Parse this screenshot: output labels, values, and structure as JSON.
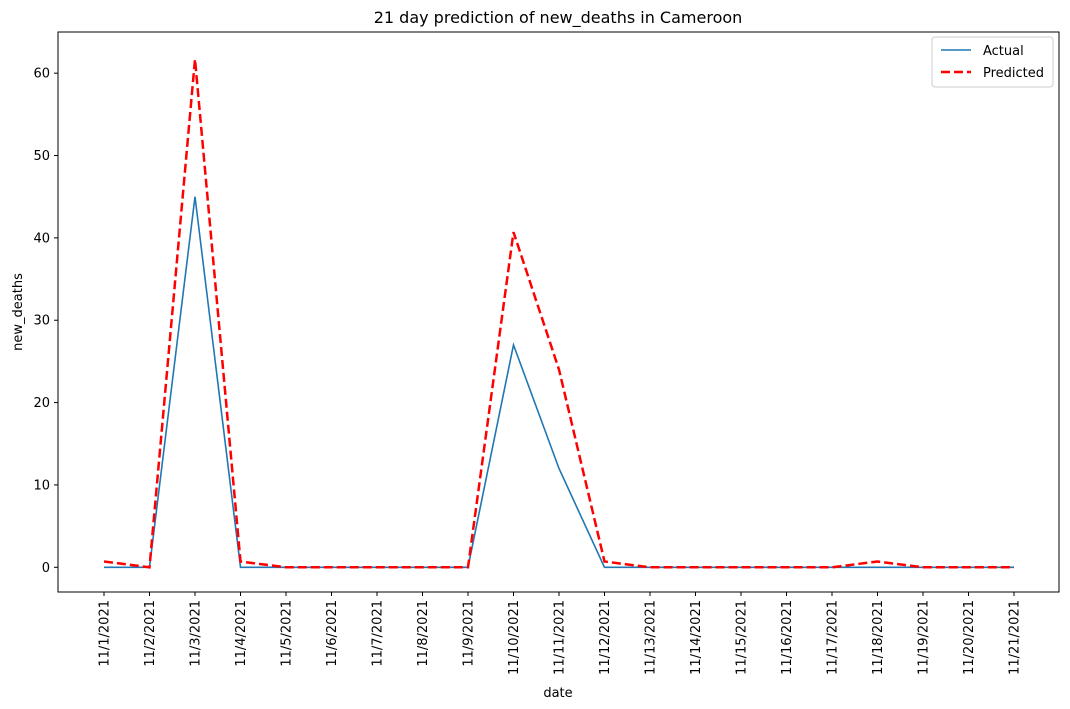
{
  "chart_data": {
    "type": "line",
    "title": "21 day prediction of new_deaths in Cameroon",
    "xlabel": "date",
    "ylabel": "new_deaths",
    "x": [
      "11/1/2021",
      "11/2/2021",
      "11/3/2021",
      "11/4/2021",
      "11/5/2021",
      "11/6/2021",
      "11/7/2021",
      "11/8/2021",
      "11/9/2021",
      "11/10/2021",
      "11/11/2021",
      "11/12/2021",
      "11/13/2021",
      "11/14/2021",
      "11/15/2021",
      "11/16/2021",
      "11/17/2021",
      "11/18/2021",
      "11/19/2021",
      "11/20/2021",
      "11/21/2021"
    ],
    "ylim": [
      -3,
      65
    ],
    "yticks": [
      0,
      10,
      20,
      30,
      40,
      50,
      60
    ],
    "grid": false,
    "legend_position": "top-right",
    "series": [
      {
        "name": "Actual",
        "color": "#1f77b4",
        "style": "solid",
        "values": [
          0,
          0,
          45,
          0,
          0,
          0,
          0,
          0,
          0,
          27,
          12,
          0,
          0,
          0,
          0,
          0,
          0,
          0,
          0,
          0,
          0
        ]
      },
      {
        "name": "Predicted",
        "color": "#ff0000",
        "style": "dashed",
        "values": [
          0.7,
          0,
          61.7,
          0.7,
          0,
          0,
          0,
          0,
          0,
          40.7,
          24,
          0.7,
          0,
          0,
          0,
          0,
          0,
          0.7,
          0,
          0,
          0
        ]
      }
    ]
  }
}
